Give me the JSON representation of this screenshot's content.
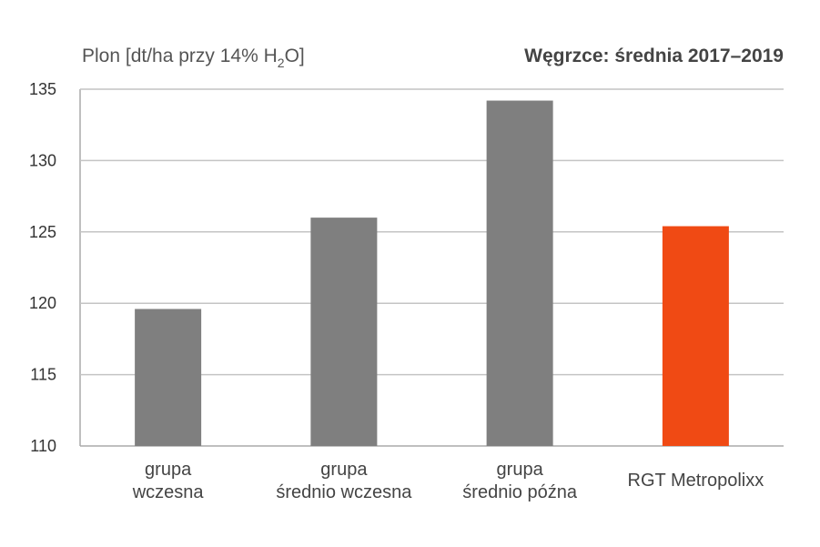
{
  "chart_data": {
    "type": "bar",
    "title": "Węgrzce: średnia 2017–2019",
    "ylabel": {
      "main": "Plon [dt/ha przy 14% H",
      "subscript": "2",
      "tail": "O]"
    },
    "xlabel": "",
    "ylim": [
      110,
      135
    ],
    "yticks": [
      110,
      115,
      120,
      125,
      130,
      135
    ],
    "grid": true,
    "categories": [
      {
        "lines": [
          "grupa",
          "wczesna"
        ]
      },
      {
        "lines": [
          "grupa",
          "średnio wczesna"
        ]
      },
      {
        "lines": [
          "grupa",
          "średnio późna"
        ]
      },
      {
        "lines": [
          "RGT Metropolixx"
        ]
      }
    ],
    "values": [
      119.6,
      126.0,
      134.2,
      125.4
    ],
    "colors": [
      "#7f7f7f",
      "#7f7f7f",
      "#7f7f7f",
      "#f04a14"
    ]
  }
}
